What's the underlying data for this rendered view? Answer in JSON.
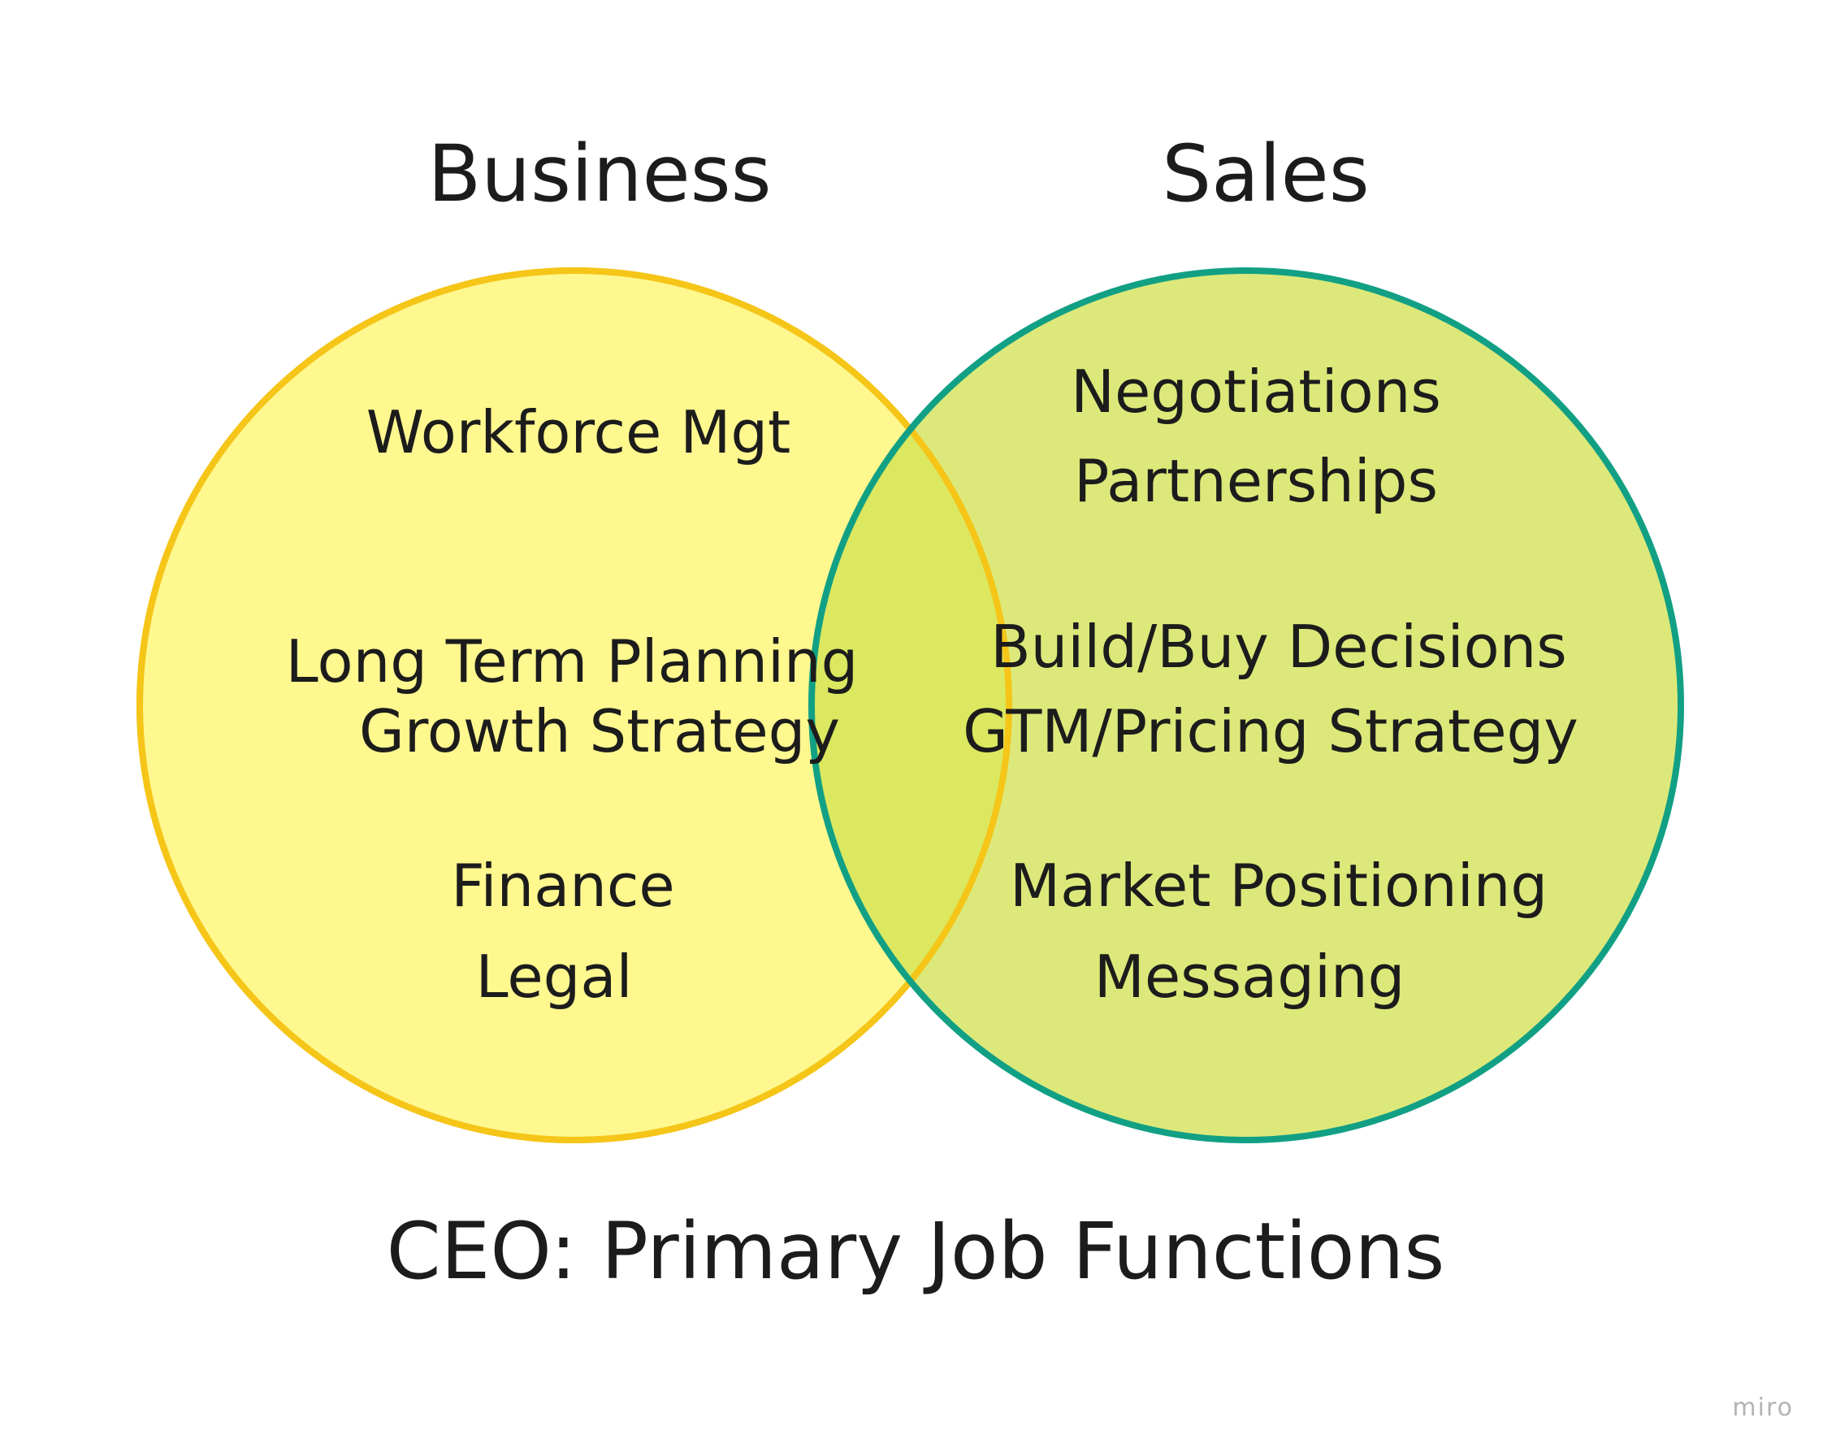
{
  "title": "CEO: Primary Job Functions",
  "watermark": "miro",
  "sets": [
    {
      "name": "Business",
      "fill": "#fff88f",
      "stroke": "#f5c518",
      "items": [
        "Workforce Mgt",
        "Long Term Planning",
        "Growth Strategy",
        "Finance",
        "Legal"
      ]
    },
    {
      "name": "Sales",
      "fill": "#dce97a",
      "stroke": "#12a085",
      "items": [
        "Negotiations",
        "Partnerships",
        "Build/Buy Decisions",
        "GTM/Pricing Strategy",
        "Market Positioning",
        "Messaging"
      ]
    }
  ],
  "overlap_fill": "#dbe860"
}
